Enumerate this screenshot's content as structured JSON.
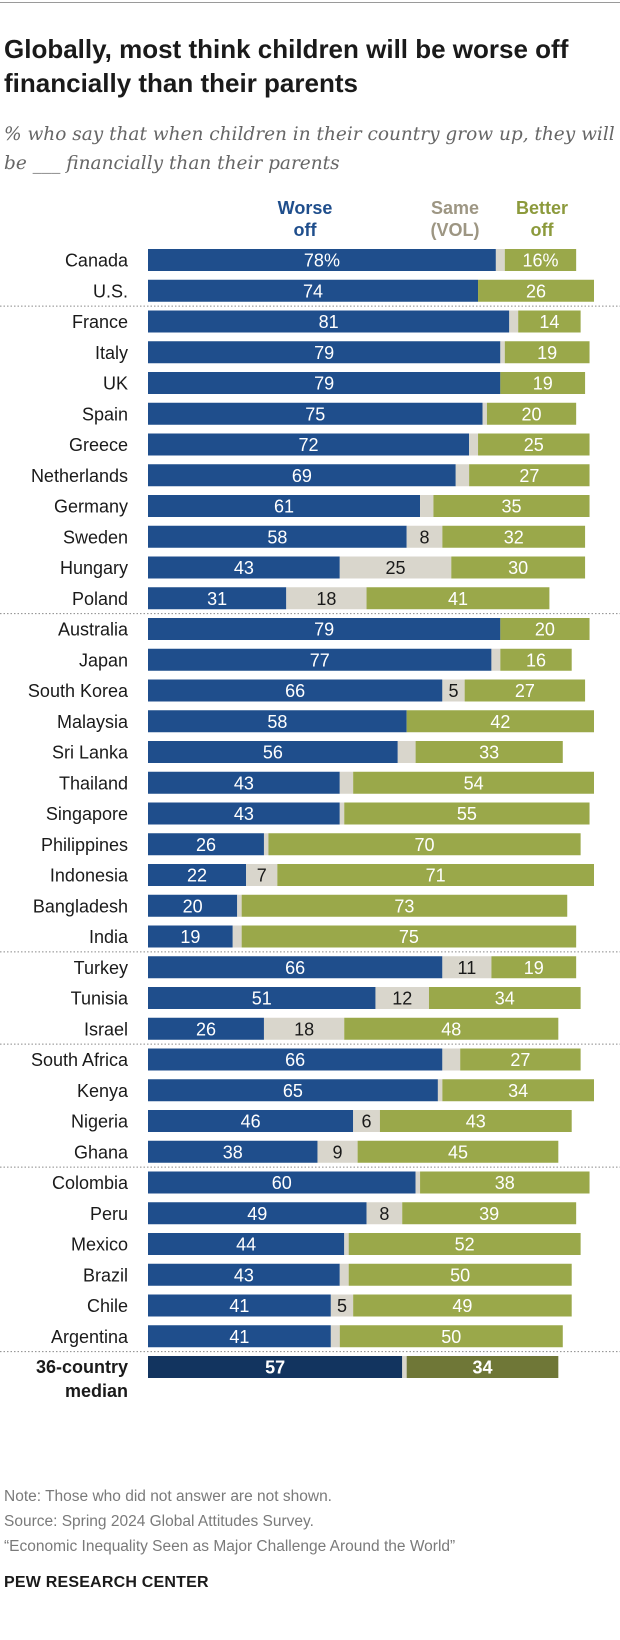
{
  "header": {
    "title": "Globally, most think children will be worse off financially than their parents",
    "subtitle": "% who say that when children in their country grow up, they will be ___ financially than their parents"
  },
  "footer": {
    "note": "Note: Those who did not answer are not shown.",
    "source": "Source: Spring 2024 Global Attitudes Survey.",
    "report": "“Economic Inequality Seen as Major Challenge Around the World”",
    "brand": "PEW RESEARCH CENTER"
  },
  "colors": {
    "worse": "#1f4e8c",
    "same": "#d9d6cc",
    "better": "#9aa84a",
    "median_worse": "#12345f",
    "median_better": "#6f7737",
    "worse_label": "#1f4e8c",
    "same_label": "#9d9683",
    "better_label": "#8c9a3c"
  },
  "chart_data": {
    "type": "bar",
    "orientation": "horizontal",
    "stacked": true,
    "legend": [
      {
        "key": "worse",
        "lines": [
          "Worse",
          "off"
        ]
      },
      {
        "key": "same",
        "lines": [
          "Same",
          "(VOL)"
        ]
      },
      {
        "key": "better",
        "lines": [
          "Better",
          "off"
        ]
      }
    ],
    "xlim": [
      0,
      100
    ],
    "categories": [
      "Canada",
      "U.S.",
      "France",
      "Italy",
      "UK",
      "Spain",
      "Greece",
      "Netherlands",
      "Germany",
      "Sweden",
      "Hungary",
      "Poland",
      "Australia",
      "Japan",
      "South Korea",
      "Malaysia",
      "Sri Lanka",
      "Thailand",
      "Singapore",
      "Philippines",
      "Indonesia",
      "Bangladesh",
      "India",
      "Turkey",
      "Tunisia",
      "Israel",
      "South Africa",
      "Kenya",
      "Nigeria",
      "Ghana",
      "Colombia",
      "Peru",
      "Mexico",
      "Brazil",
      "Chile",
      "Argentina"
    ],
    "series": [
      {
        "name": "Worse off",
        "key": "worse",
        "values": [
          78,
          74,
          81,
          79,
          79,
          75,
          72,
          69,
          61,
          58,
          43,
          31,
          79,
          77,
          66,
          58,
          56,
          43,
          43,
          26,
          22,
          20,
          19,
          66,
          51,
          26,
          66,
          65,
          46,
          38,
          60,
          49,
          44,
          43,
          41,
          41
        ]
      },
      {
        "name": "Same (VOL)",
        "key": "same",
        "values": [
          2,
          0,
          2,
          1,
          0,
          1,
          2,
          3,
          3,
          8,
          25,
          18,
          0,
          2,
          5,
          0,
          4,
          3,
          1,
          1,
          7,
          1,
          2,
          11,
          12,
          18,
          4,
          1,
          6,
          9,
          1,
          8,
          1,
          2,
          5,
          2
        ]
      },
      {
        "name": "Better off",
        "key": "better",
        "values": [
          16,
          26,
          14,
          19,
          19,
          20,
          25,
          27,
          35,
          32,
          30,
          41,
          20,
          16,
          27,
          42,
          33,
          54,
          55,
          70,
          71,
          73,
          75,
          19,
          34,
          48,
          27,
          34,
          43,
          45,
          38,
          39,
          52,
          50,
          49,
          50
        ]
      }
    ],
    "value_labels": {
      "worse": [
        "78%",
        "74",
        "81",
        "79",
        "79",
        "75",
        "72",
        "69",
        "61",
        "58",
        "43",
        "31",
        "79",
        "77",
        "66",
        "58",
        "56",
        "43",
        "43",
        "26",
        "22",
        "20",
        "19",
        "66",
        "51",
        "26",
        "66",
        "65",
        "46",
        "38",
        "60",
        "49",
        "44",
        "43",
        "41",
        "41"
      ],
      "same": [
        "",
        "",
        "",
        "",
        "",
        "",
        "",
        "",
        "",
        "8",
        "25",
        "18",
        "",
        "",
        "5",
        "",
        "",
        "",
        "",
        "",
        "7",
        "",
        "",
        "11",
        "12",
        "18",
        "",
        "",
        "6",
        "9",
        "",
        "8",
        "",
        "",
        "5",
        ""
      ],
      "better": [
        "16%",
        "26",
        "14",
        "19",
        "19",
        "20",
        "25",
        "27",
        "35",
        "32",
        "30",
        "41",
        "20",
        "16",
        "27",
        "42",
        "33",
        "54",
        "55",
        "70",
        "71",
        "73",
        "75",
        "19",
        "34",
        "48",
        "27",
        "34",
        "43",
        "45",
        "38",
        "39",
        "52",
        "50",
        "49",
        "50"
      ]
    },
    "group_separators_after": [
      "U.S.",
      "Poland",
      "India",
      "Israel",
      "Ghana",
      "Argentina"
    ],
    "median": {
      "label_lines": [
        "36-country",
        "median"
      ],
      "worse": 57,
      "same": 1,
      "better": 34,
      "worse_label": "57",
      "better_label": "34"
    }
  }
}
